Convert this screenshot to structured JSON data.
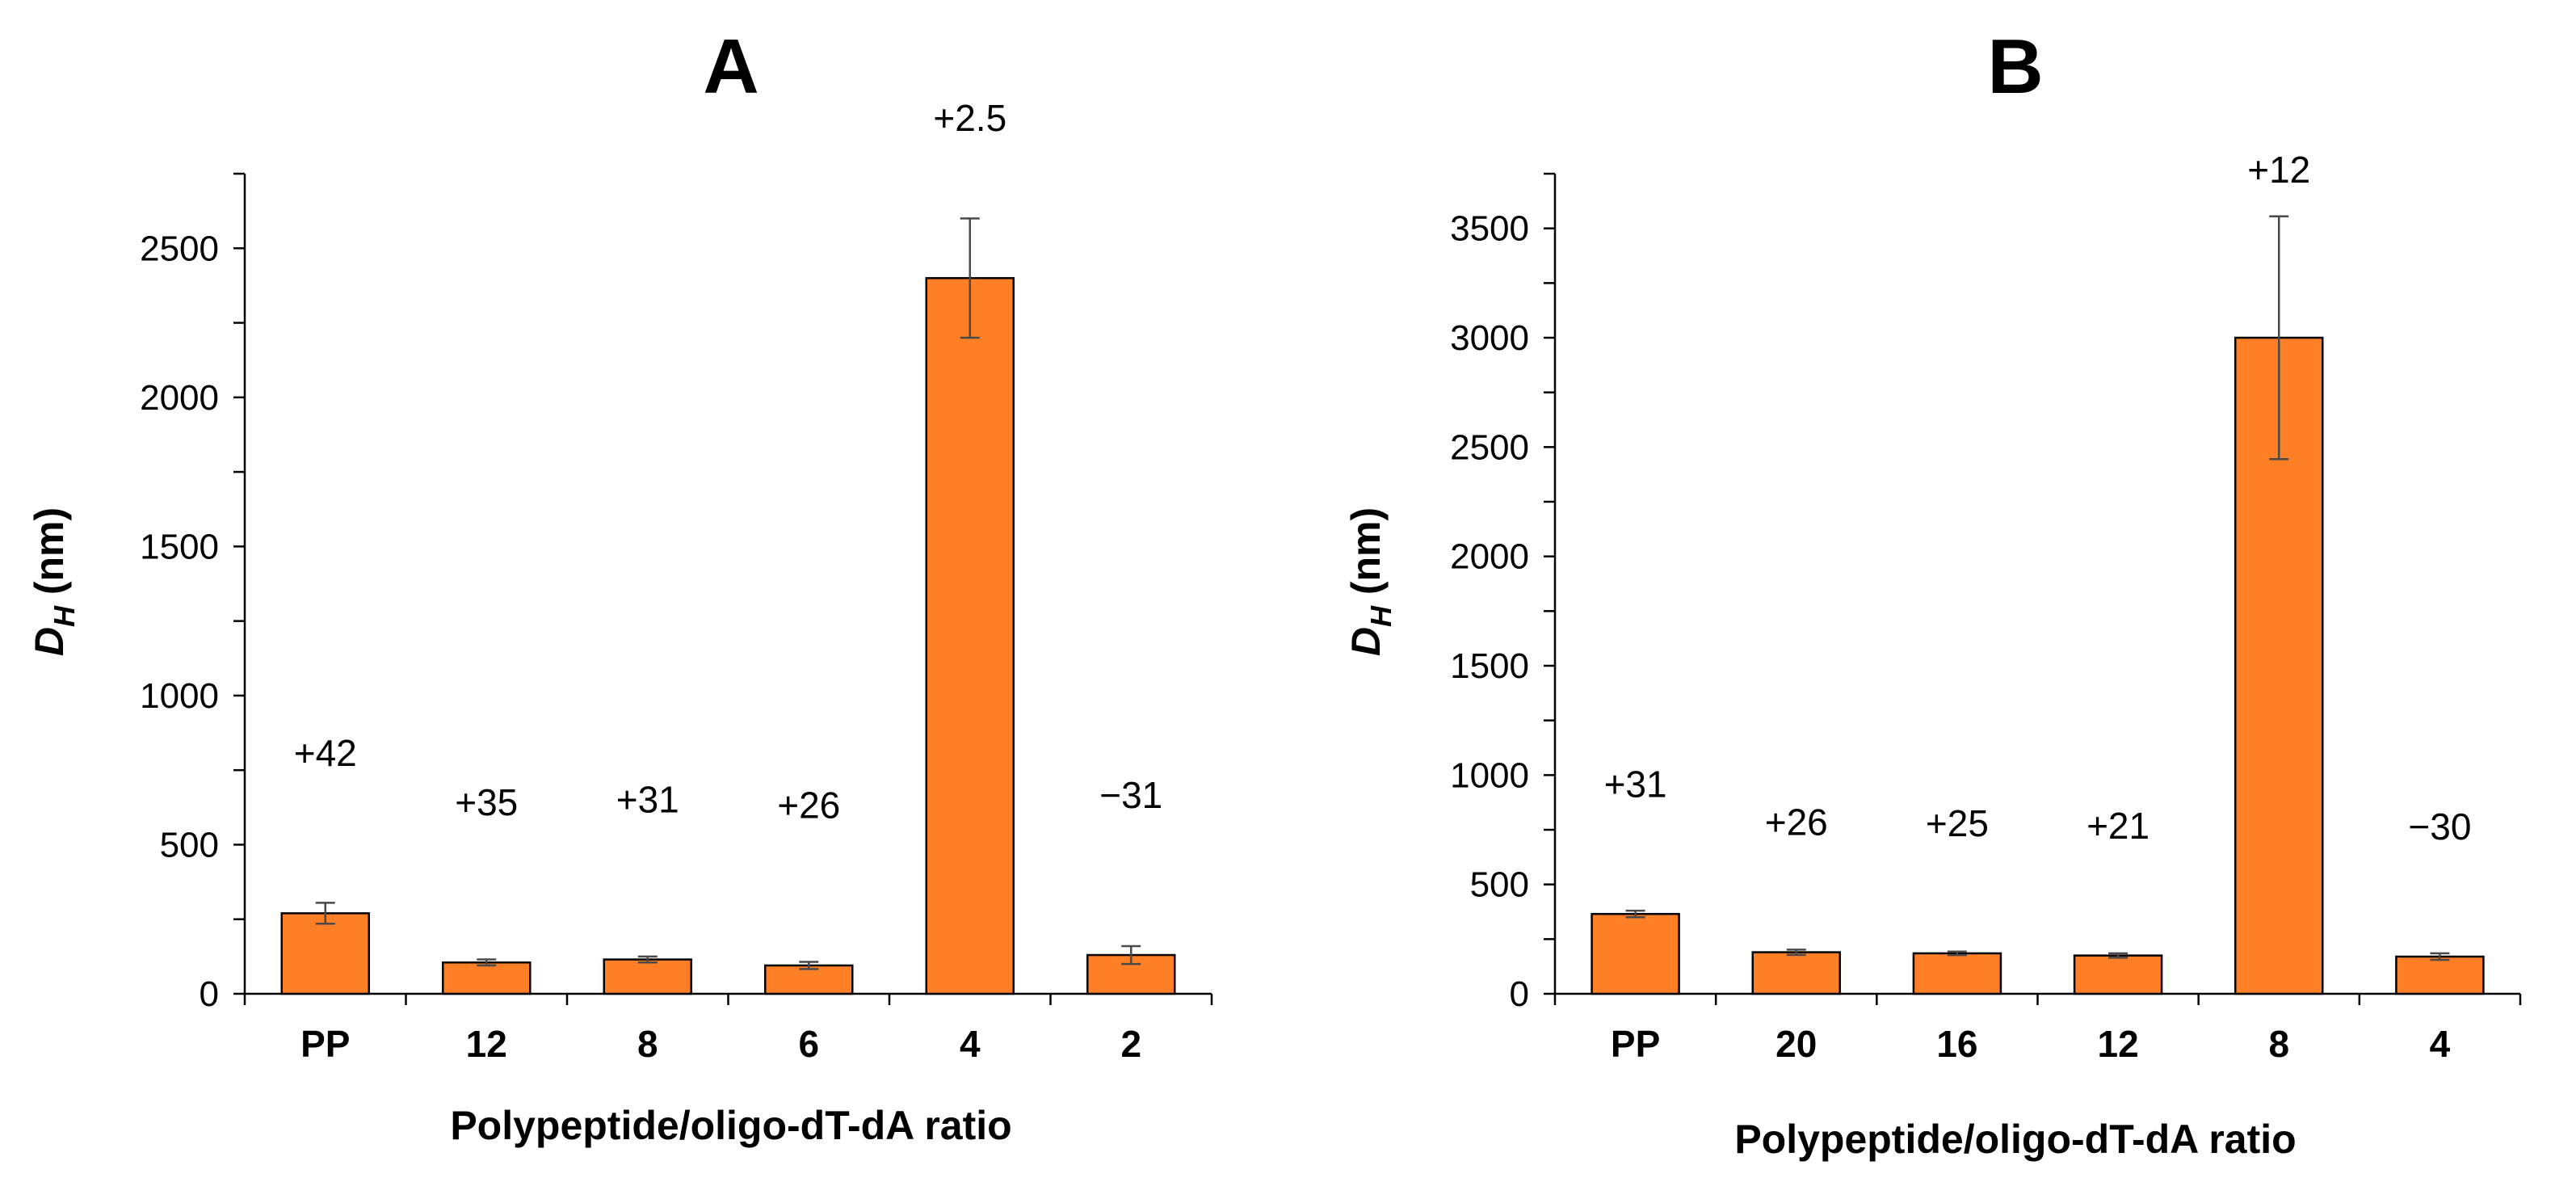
{
  "chart_data": [
    {
      "type": "bar",
      "panel": "A",
      "title": "A",
      "categories": [
        "PP",
        "12",
        "8",
        "6",
        "4",
        "2"
      ],
      "values": [
        270,
        105,
        115,
        95,
        2400,
        130
      ],
      "error": [
        35,
        10,
        10,
        12,
        200,
        30
      ],
      "labels": [
        "+42",
        "+35",
        "+31",
        "+26",
        "+2.5",
        "−31"
      ],
      "ylim": [
        0,
        2750
      ],
      "yticks": [
        0,
        500,
        1000,
        1500,
        2000,
        2500
      ],
      "minor_step": 250,
      "ylabel_main": "D",
      "ylabel_sub": "H",
      "ylabel_unit": " (nm)",
      "xlabel": "Polypeptide/oligo-dT-dA ratio",
      "grid": false
    },
    {
      "type": "bar",
      "panel": "B",
      "title": "B",
      "categories": [
        "PP",
        "20",
        "16",
        "12",
        "8",
        "4"
      ],
      "values": [
        365,
        190,
        185,
        175,
        3000,
        170
      ],
      "error": [
        15,
        12,
        8,
        10,
        555,
        15
      ],
      "labels": [
        "+31",
        "+26",
        "+25",
        "+21",
        "+12",
        "−30"
      ],
      "ylim": [
        0,
        3750
      ],
      "yticks": [
        0,
        500,
        1000,
        1500,
        2000,
        2500,
        3000,
        3500
      ],
      "minor_step": 250,
      "ylabel_main": "D",
      "ylabel_sub": "H",
      "ylabel_unit": " (nm)",
      "xlabel": "Polypeptide/oligo-dT-dA ratio",
      "grid": false
    }
  ],
  "colors": {
    "bar": "#ff7f27",
    "error_bar": "#4a4a4a",
    "axis": "#000000"
  }
}
